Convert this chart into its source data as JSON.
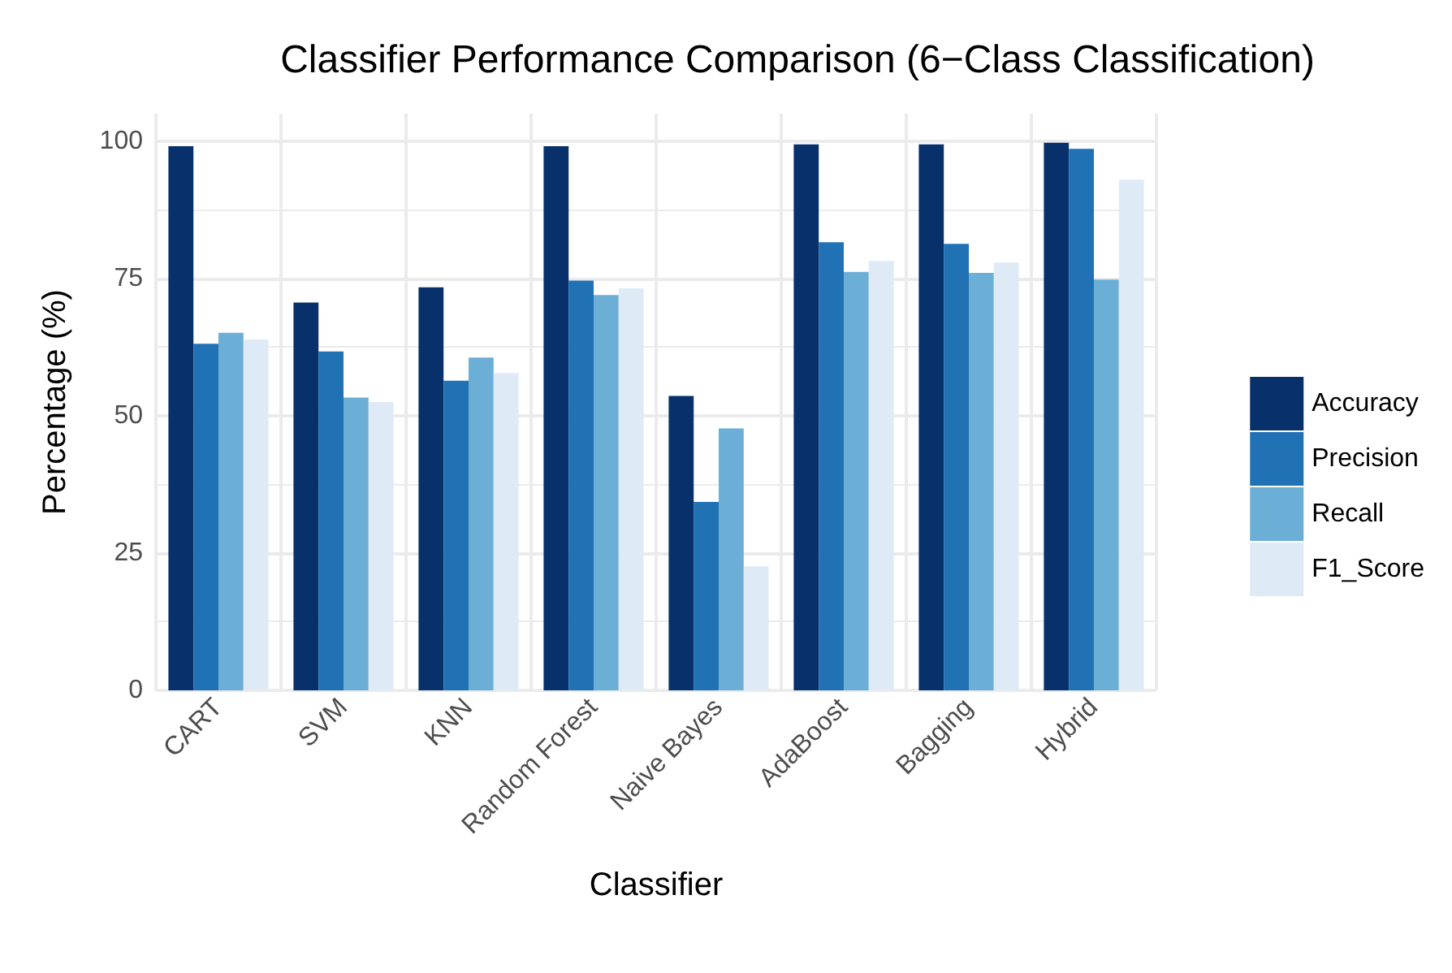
{
  "chart_data": {
    "type": "bar",
    "title": "Classifier Performance Comparison (6−Class Classification)",
    "xlabel": "Classifier",
    "ylabel": "Percentage (%)",
    "categories": [
      "CART",
      "SVM",
      "KNN",
      "Random Forest",
      "Naive Bayes",
      "AdaBoost",
      "Bagging",
      "Hybrid"
    ],
    "series": [
      {
        "name": "Accuracy",
        "color": "#08306b",
        "values": [
          99.1,
          70.6,
          73.4,
          99.1,
          53.6,
          99.4,
          99.4,
          99.7
        ]
      },
      {
        "name": "Precision",
        "color": "#2171b5",
        "values": [
          63.1,
          61.7,
          56.4,
          74.6,
          34.3,
          81.6,
          81.3,
          98.6
        ]
      },
      {
        "name": "Recall",
        "color": "#6baed6",
        "values": [
          65.1,
          53.3,
          60.6,
          72.0,
          47.7,
          76.2,
          76.0,
          74.8
        ]
      },
      {
        "name": "F1_Score",
        "color": "#deebf7",
        "values": [
          63.9,
          52.5,
          57.8,
          73.2,
          22.6,
          78.2,
          77.9,
          93.0
        ]
      }
    ],
    "ylim": [
      0,
      105
    ],
    "yticks": [
      0,
      25,
      50,
      75,
      100
    ],
    "grid": true,
    "legend": "right"
  }
}
